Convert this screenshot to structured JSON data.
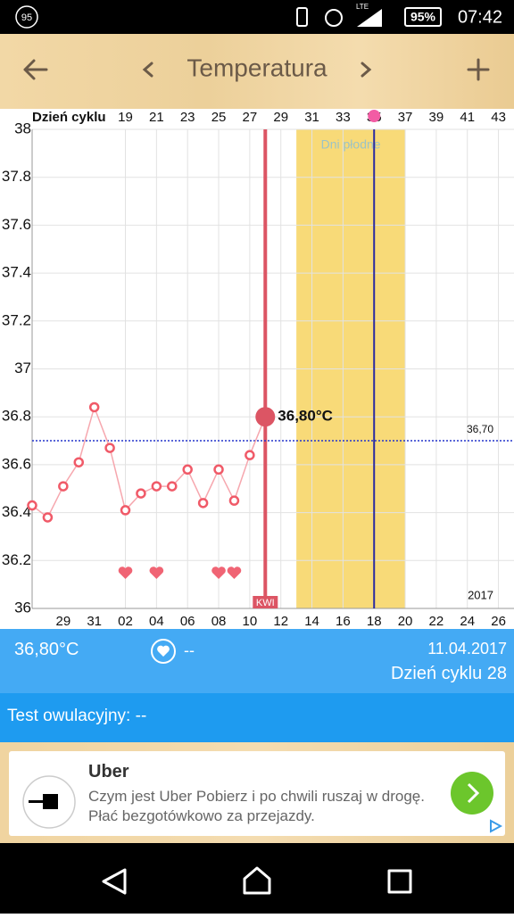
{
  "status_bar": {
    "notification_count": "95",
    "network": "LTE",
    "battery": "95%",
    "time": "07:42"
  },
  "toolbar": {
    "title": "Temperatura"
  },
  "chart_data": {
    "type": "line",
    "x_axis_label": "Dzień cyklu",
    "x": [
      13,
      14,
      15,
      16,
      17,
      18,
      19,
      20,
      21,
      22,
      23,
      24,
      25,
      26,
      27,
      28
    ],
    "series": [
      {
        "color": "#f05a68",
        "values": [
          36.43,
          36.38,
          36.51,
          36.61,
          36.84,
          36.67,
          36.41,
          36.48,
          36.51,
          36.51,
          36.58,
          36.44,
          36.58,
          36.45,
          36.64,
          36.8
        ],
        "value_labels": [
          null,
          null,
          null,
          null,
          null,
          null,
          null,
          null,
          null,
          null,
          null,
          null,
          null,
          null,
          null,
          "36,80°C"
        ]
      }
    ],
    "xlim": [
      13,
      44
    ],
    "xticks": [
      19,
      21,
      23,
      25,
      27,
      29,
      31,
      33,
      35,
      37,
      39,
      41,
      43
    ],
    "date_ticks": [
      {
        "value": 15,
        "label": "29"
      },
      {
        "value": 17,
        "label": "31"
      },
      {
        "value": 19,
        "label": "02"
      },
      {
        "value": 21,
        "label": "04"
      },
      {
        "value": 23,
        "label": "06"
      },
      {
        "value": 25,
        "label": "08"
      },
      {
        "value": 27,
        "label": "10"
      },
      {
        "value": 29,
        "label": "12"
      },
      {
        "value": 31,
        "label": "14"
      },
      {
        "value": 33,
        "label": "16"
      },
      {
        "value": 35,
        "label": "18"
      },
      {
        "value": 37,
        "label": "20"
      },
      {
        "value": 39,
        "label": "22"
      },
      {
        "value": 41,
        "label": "24"
      },
      {
        "value": 43,
        "label": "26"
      }
    ],
    "ylim": [
      36,
      38
    ],
    "yticks": [
      36,
      36.2,
      36.4,
      36.6,
      36.8,
      37,
      37.2,
      37.4,
      37.6,
      37.8,
      38
    ],
    "grid": true,
    "reference_line": {
      "value": 36.7,
      "label": "36,70",
      "color": "#2233cc"
    },
    "fertile_window": {
      "label": "Dni płodne",
      "start": 30,
      "end": 37,
      "color": "#f8da78"
    },
    "ovulation_day": 35,
    "current_day": {
      "value": 28,
      "label": "KWI"
    },
    "hearts": [
      19,
      21,
      25,
      26
    ],
    "year": "2017"
  },
  "info": {
    "temperature": "36,80°C",
    "note": "--",
    "date": "11.04.2017",
    "cycle_day": "Dzień cyklu 28",
    "ovulation_test": "Test owulacyjny: --"
  },
  "ad": {
    "title": "Uber",
    "text": "Czym jest Uber Pobierz i po chwili ruszaj w drogę. Płać bezgotówkowo za przejazdy."
  }
}
